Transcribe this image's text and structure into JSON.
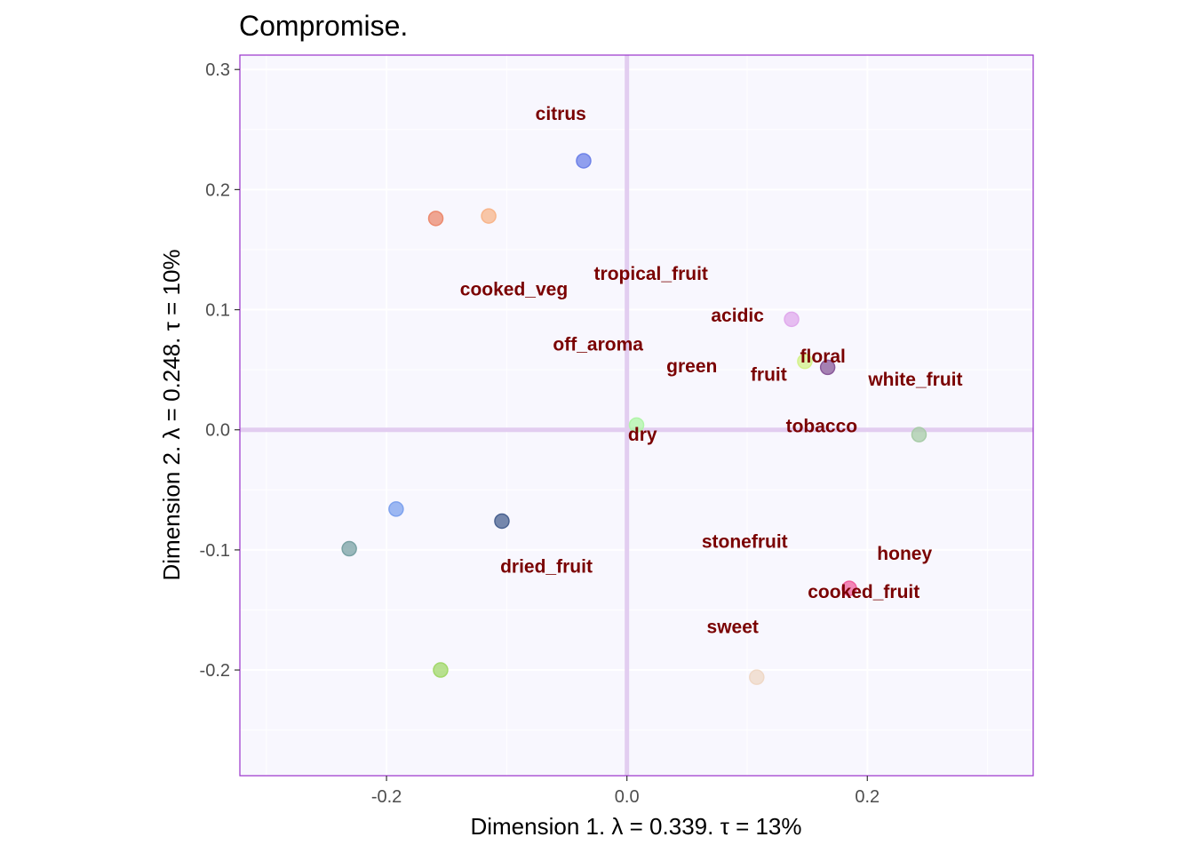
{
  "chart_data": {
    "type": "scatter",
    "title": "Compromise.",
    "xlabel": "Dimension 1.   λ = 0.339.  τ = 13%",
    "ylabel": "Dimension 2.   λ = 0.248.  τ = 10%",
    "xlim": [
      -0.322,
      0.338
    ],
    "ylim": [
      -0.288,
      0.312
    ],
    "x_ticks": [
      -0.2,
      0.0,
      0.2
    ],
    "x_tick_labels": [
      "-0.2",
      "0.0",
      "0.2"
    ],
    "y_ticks": [
      -0.2,
      -0.1,
      0.0,
      0.1,
      0.2,
      0.3
    ],
    "y_tick_labels": [
      "-0.2",
      "-0.1",
      "0.0",
      "0.1",
      "0.2",
      "0.3"
    ],
    "grid": true,
    "colors": {
      "panel_background": "#f8f7fe",
      "panel_border": "#9932cc",
      "origin_lines": "#e2cdf0",
      "grid": "#ffffff",
      "label_color": "#7a0000"
    },
    "observations": [
      {
        "x": -0.036,
        "y": 0.224,
        "color": "#6e82e8"
      },
      {
        "x": -0.159,
        "y": 0.176,
        "color": "#ec8a6e"
      },
      {
        "x": -0.115,
        "y": 0.178,
        "color": "#f8b58a"
      },
      {
        "x": 0.137,
        "y": 0.092,
        "color": "#e0aaec"
      },
      {
        "x": 0.148,
        "y": 0.057,
        "color": "#d4f28a"
      },
      {
        "x": 0.167,
        "y": 0.052,
        "color": "#8a5a9a"
      },
      {
        "x": 0.008,
        "y": 0.004,
        "color": "#b0f5a8"
      },
      {
        "x": 0.243,
        "y": -0.004,
        "color": "#a8cca8"
      },
      {
        "x": -0.192,
        "y": -0.066,
        "color": "#7ea2ee"
      },
      {
        "x": -0.104,
        "y": -0.076,
        "color": "#4a6290"
      },
      {
        "x": -0.231,
        "y": -0.099,
        "color": "#7aa2a4"
      },
      {
        "x": 0.185,
        "y": -0.132,
        "color": "#f0609e"
      },
      {
        "x": -0.155,
        "y": -0.2,
        "color": "#a2d86a"
      },
      {
        "x": 0.108,
        "y": -0.206,
        "color": "#efd8c6"
      }
    ],
    "variables": [
      {
        "label": "citrus",
        "x": -0.055,
        "y": 0.262
      },
      {
        "label": "tropical_fruit",
        "x": 0.02,
        "y": 0.129
      },
      {
        "label": "cooked_veg",
        "x": -0.094,
        "y": 0.116
      },
      {
        "label": "acidic",
        "x": 0.092,
        "y": 0.094
      },
      {
        "label": "off_aroma",
        "x": -0.024,
        "y": 0.07
      },
      {
        "label": "floral",
        "x": 0.163,
        "y": 0.06
      },
      {
        "label": "green",
        "x": 0.054,
        "y": 0.052
      },
      {
        "label": "fruit",
        "x": 0.118,
        "y": 0.045
      },
      {
        "label": "white_fruit",
        "x": 0.24,
        "y": 0.041
      },
      {
        "label": "tobacco",
        "x": 0.162,
        "y": 0.002
      },
      {
        "label": "dry",
        "x": 0.013,
        "y": -0.005
      },
      {
        "label": "stonefruit",
        "x": 0.098,
        "y": -0.094
      },
      {
        "label": "honey",
        "x": 0.231,
        "y": -0.104
      },
      {
        "label": "dried_fruit",
        "x": -0.067,
        "y": -0.115
      },
      {
        "label": "cooked_fruit",
        "x": 0.197,
        "y": -0.136
      },
      {
        "label": "sweet",
        "x": 0.088,
        "y": -0.165
      }
    ]
  }
}
